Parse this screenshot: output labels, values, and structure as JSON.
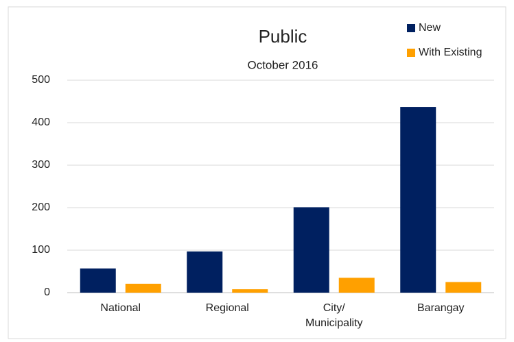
{
  "chart_data": {
    "type": "bar",
    "title": "Public",
    "subtitle": "October 2016",
    "categories": [
      "National",
      "Regional",
      "City/ Municipality",
      "Barangay"
    ],
    "series": [
      {
        "name": "New",
        "color": "#002060",
        "values": [
          57,
          97,
          201,
          437
        ]
      },
      {
        "name": "With Existing",
        "color": "#ffa000",
        "values": [
          21,
          8,
          35,
          25
        ]
      }
    ],
    "ylim": [
      0,
      500
    ],
    "yticks": [
      0,
      100,
      200,
      300,
      400,
      500
    ],
    "grid": true,
    "legend": "top-right"
  }
}
